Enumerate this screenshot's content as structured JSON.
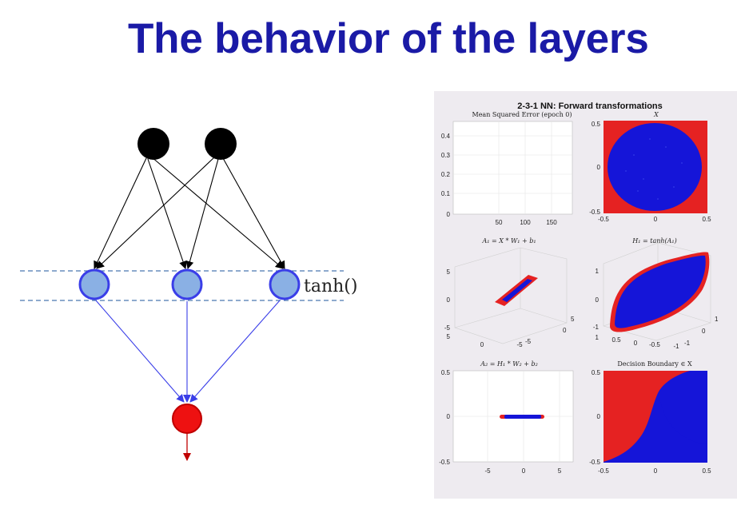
{
  "slide": {
    "title": "The behavior of the layers"
  },
  "network": {
    "activation_label": "tanh()",
    "input_nodes": 2,
    "hidden_nodes": 3,
    "output_nodes": 1,
    "colors": {
      "input": "#000000",
      "hidden_fill": "#8ab0e4",
      "hidden_stroke": "#3a3ee8",
      "output_fill": "#ee1111",
      "output_stroke": "#c00000",
      "edges_in": "#000000",
      "edges_out": "#3a3ee8",
      "dashed_lines": "#4a78b0",
      "output_arrow": "#c00000"
    }
  },
  "figure": {
    "suptitle": "2-3-1 NN: Forward transformations",
    "colors": {
      "class_a": "#e52222",
      "class_b": "#1515d8",
      "panel_bg": "#eeebf0"
    },
    "subplots": [
      {
        "id": "mse",
        "title": "Mean Squared Error (epoch 0)",
        "type": "line",
        "x_ticks": [
          "50",
          "100",
          "150"
        ],
        "y_ticks": [
          "0",
          "0.1",
          "0.2",
          "0.3",
          "0.4"
        ]
      },
      {
        "id": "input-space",
        "title": "X",
        "type": "scatter",
        "x_ticks": [
          "-0.5",
          "0",
          "0.5"
        ],
        "y_ticks": [
          "-0.5",
          "0",
          "0.5"
        ]
      },
      {
        "id": "a1",
        "title": "A₁ = X * W₁ + b₁",
        "type": "scatter3d",
        "z_ticks": [
          "5",
          "0",
          "-5"
        ],
        "x_ticks": [
          "5",
          "0",
          "-5"
        ],
        "y_ticks": [
          "-5",
          "0",
          "5"
        ]
      },
      {
        "id": "h1",
        "title": "H₁ = tanh(A₁)",
        "type": "scatter3d",
        "z_ticks": [
          "1",
          "0",
          "-1"
        ],
        "x_ticks": [
          "1",
          "0.5",
          "0",
          "-0.5",
          "-1"
        ],
        "y_ticks": [
          "-1",
          "0",
          "1"
        ]
      },
      {
        "id": "a2",
        "title": "A₂ = H₁ * W₂ + b₂",
        "type": "scatter",
        "x_ticks": [
          "-5",
          "0",
          "5"
        ],
        "y_ticks": [
          "-0.5",
          "0",
          "0.5"
        ]
      },
      {
        "id": "decision",
        "title": "Decision Boundary ∈ X",
        "type": "scatter",
        "x_ticks": [
          "-0.5",
          "0",
          "0.5"
        ],
        "y_ticks": [
          "-0.5",
          "0",
          "0.5"
        ]
      }
    ]
  }
}
